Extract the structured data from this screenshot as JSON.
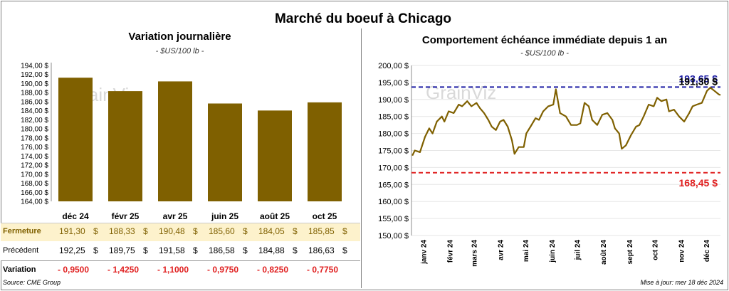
{
  "title": "Marché du boeuf à Chicago",
  "left_title": "Variation  journalière",
  "left_subtitle": "- $US/100 lb -",
  "right_title": "Comportement  échéance immédiate depuis 1 an",
  "right_subtitle": "- $US/100 lb -",
  "watermark": "GrainViz",
  "source": "Source: CME Group",
  "updated": "Mise à jour: mer 18 déc 2024",
  "colors": {
    "bar": "#7f6000",
    "line": "#7f6000",
    "high_line": "#1f1fa5",
    "low_line": "#e02020",
    "negative": "#e02020",
    "close_band": "#fdf2cc"
  },
  "table": {
    "currency": "$",
    "rows": [
      {
        "label": "Fermeture",
        "values": [
          "191,30",
          "188,33",
          "190,48",
          "185,60",
          "184,05",
          "185,85"
        ]
      },
      {
        "label": "Précédent",
        "values": [
          "192,25",
          "189,75",
          "191,58",
          "186,58",
          "184,88",
          "186,63"
        ]
      },
      {
        "label": "Variation",
        "values": [
          "- 0,9500",
          "- 1,4250",
          "- 1,1000",
          "- 0,9750",
          "- 0,8250",
          "- 0,7750"
        ]
      }
    ]
  },
  "chart_data": [
    {
      "type": "bar",
      "title": "Variation  journalière",
      "subtitle": "- $US/100 lb -",
      "categories": [
        "déc 24",
        "févr 25",
        "avr 25",
        "juin 25",
        "août 25",
        "oct 25"
      ],
      "values": [
        191.3,
        188.33,
        190.48,
        185.6,
        184.05,
        185.85
      ],
      "ylim": [
        164,
        194
      ],
      "yticks": [
        "164,00 $",
        "166,00 $",
        "168,00 $",
        "170,00 $",
        "172,00 $",
        "174,00 $",
        "176,00 $",
        "178,00 $",
        "180,00 $",
        "182,00 $",
        "184,00 $",
        "186,00 $",
        "188,00 $",
        "190,00 $",
        "192,00 $",
        "194,00 $"
      ]
    },
    {
      "type": "line",
      "title": "Comportement  échéance immédiate depuis 1 an",
      "subtitle": "- $US/100 lb -",
      "ylim": [
        150,
        200
      ],
      "yticks": [
        "150,00 $",
        "155,00 $",
        "160,00 $",
        "165,00 $",
        "170,00 $",
        "175,00 $",
        "180,00 $",
        "185,00 $",
        "190,00 $",
        "195,00 $",
        "200,00 $"
      ],
      "xticks": [
        "janv 24",
        "févr 24",
        "mars 24",
        "avr 24",
        "mai 24",
        "juin 24",
        "juil 24",
        "août 24",
        "sept 24",
        "oct 24",
        "nov 24",
        "déc 24"
      ],
      "x_range": [
        "2023-12-18",
        "2024-12-18"
      ],
      "series": [
        {
          "points": [
            [
              "2023-12-19",
              173.5
            ],
            [
              "2023-12-22",
              175.0
            ],
            [
              "2023-12-28",
              174.5
            ],
            [
              "2024-01-03",
              179.0
            ],
            [
              "2024-01-08",
              181.5
            ],
            [
              "2024-01-12",
              180.0
            ],
            [
              "2024-01-17",
              183.5
            ],
            [
              "2024-01-23",
              185.0
            ],
            [
              "2024-01-26",
              183.5
            ],
            [
              "2024-01-31",
              186.5
            ],
            [
              "2024-02-06",
              186.0
            ],
            [
              "2024-02-12",
              188.5
            ],
            [
              "2024-02-16",
              188.0
            ],
            [
              "2024-02-22",
              189.5
            ],
            [
              "2024-02-27",
              188.0
            ],
            [
              "2024-03-04",
              189.0
            ],
            [
              "2024-03-08",
              187.5
            ],
            [
              "2024-03-13",
              186.0
            ],
            [
              "2024-03-18",
              184.0
            ],
            [
              "2024-03-22",
              182.0
            ],
            [
              "2024-03-27",
              181.0
            ],
            [
              "2024-04-01",
              183.5
            ],
            [
              "2024-04-05",
              184.0
            ],
            [
              "2024-04-10",
              182.0
            ],
            [
              "2024-04-15",
              178.0
            ],
            [
              "2024-04-18",
              174.0
            ],
            [
              "2024-04-23",
              176.0
            ],
            [
              "2024-04-29",
              176.0
            ],
            [
              "2024-05-02",
              180.0
            ],
            [
              "2024-05-07",
              182.0
            ],
            [
              "2024-05-13",
              184.5
            ],
            [
              "2024-05-17",
              184.0
            ],
            [
              "2024-05-22",
              186.5
            ],
            [
              "2024-05-28",
              188.0
            ],
            [
              "2024-06-03",
              188.5
            ],
            [
              "2024-06-06",
              193.0
            ],
            [
              "2024-06-11",
              186.0
            ],
            [
              "2024-06-18",
              185.0
            ],
            [
              "2024-06-24",
              182.5
            ],
            [
              "2024-07-01",
              182.5
            ],
            [
              "2024-07-05",
              183.0
            ],
            [
              "2024-07-10",
              189.0
            ],
            [
              "2024-07-15",
              188.0
            ],
            [
              "2024-07-19",
              184.0
            ],
            [
              "2024-07-25",
              182.5
            ],
            [
              "2024-07-31",
              185.5
            ],
            [
              "2024-08-06",
              186.0
            ],
            [
              "2024-08-12",
              184.0
            ],
            [
              "2024-08-15",
              181.5
            ],
            [
              "2024-08-20",
              180.0
            ],
            [
              "2024-08-23",
              175.5
            ],
            [
              "2024-08-28",
              176.5
            ],
            [
              "2024-09-03",
              179.5
            ],
            [
              "2024-09-09",
              182.0
            ],
            [
              "2024-09-13",
              182.5
            ],
            [
              "2024-09-18",
              185.0
            ],
            [
              "2024-09-24",
              188.5
            ],
            [
              "2024-09-30",
              188.0
            ],
            [
              "2024-10-04",
              190.5
            ],
            [
              "2024-10-09",
              189.5
            ],
            [
              "2024-10-15",
              190.0
            ],
            [
              "2024-10-18",
              186.5
            ],
            [
              "2024-10-24",
              187.0
            ],
            [
              "2024-10-30",
              185.0
            ],
            [
              "2024-11-05",
              183.5
            ],
            [
              "2024-11-11",
              186.0
            ],
            [
              "2024-11-15",
              188.0
            ],
            [
              "2024-11-20",
              188.5
            ],
            [
              "2024-11-26",
              189.0
            ],
            [
              "2024-12-02",
              192.5
            ],
            [
              "2024-12-06",
              193.5
            ],
            [
              "2024-12-11",
              192.5
            ],
            [
              "2024-12-16",
              191.5
            ],
            [
              "2024-12-18",
              191.3
            ]
          ]
        }
      ],
      "ref_lines": [
        {
          "value": 193.65,
          "label": "193,65 $",
          "color": "#1f1fa5"
        },
        {
          "value": 168.45,
          "label": "168,45 $",
          "color": "#e02020"
        }
      ],
      "last_label": "191,30 $"
    }
  ]
}
